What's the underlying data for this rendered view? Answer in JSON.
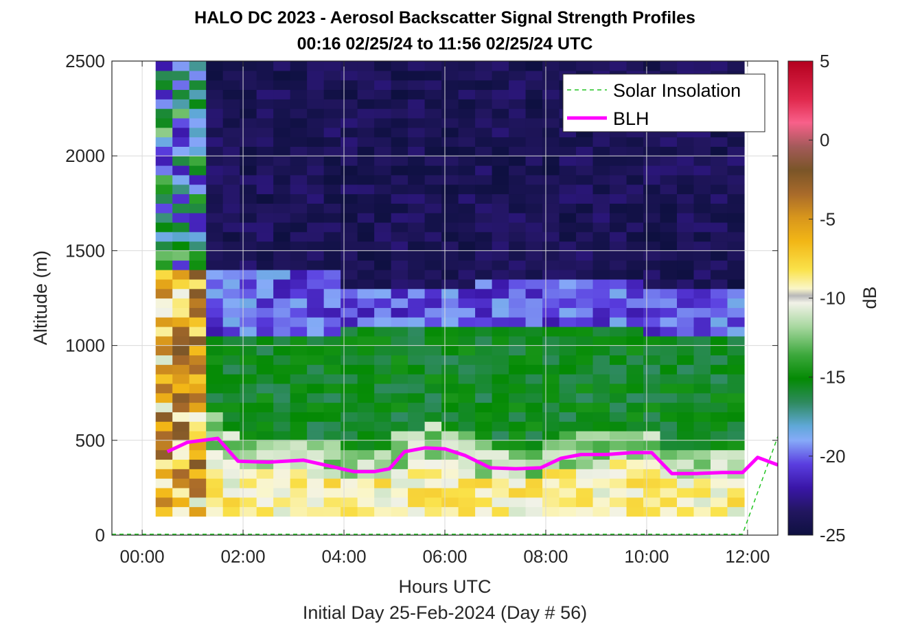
{
  "chart_data": {
    "type": "heatmap",
    "title": "HALO DC 2023 - Aerosol Backscatter Signal Strength Profiles",
    "subtitle": "00:16 02/25/24 to 11:56 02/25/24  UTC",
    "xlabel": "Hours UTC",
    "xlabel2": "Initial Day 25-Feb-2024 (Day # 56)",
    "ylabel": "Altitude (m)",
    "colorbar_label": "dB",
    "xlim": [
      -0.6,
      12.6
    ],
    "ylim": [
      0,
      2500
    ],
    "clim": [
      -25,
      5
    ],
    "x_ticks": [
      0,
      2,
      4,
      6,
      8,
      10,
      12
    ],
    "x_tick_labels": [
      "00:00",
      "02:00",
      "04:00",
      "06:00",
      "08:00",
      "10:00",
      "12:00"
    ],
    "y_ticks": [
      0,
      500,
      1000,
      1500,
      2000,
      2500
    ],
    "y_tick_labels": [
      "0",
      "500",
      "1000",
      "1500",
      "2000",
      "2500"
    ],
    "colorbar_ticks": [
      5,
      0,
      -5,
      -10,
      -15,
      -20,
      -25
    ],
    "colorbar_tick_labels": [
      "5",
      "0",
      "-5",
      "-10",
      "-15",
      "-20",
      "-25"
    ],
    "grid": true,
    "legend_position": "top-right",
    "legend": [
      {
        "label": "Solar Insolation",
        "color": "#22c422",
        "style": "dashed"
      },
      {
        "label": "BLH",
        "color": "#ff00ff",
        "style": "solid"
      }
    ],
    "heatmap": {
      "time_start_hours": 0.267,
      "time_end_hours": 11.933,
      "alt_start_m": 100,
      "alt_end_m": 2500,
      "alt_step_m": 50,
      "notes": "Approximate backscatter (dB): ~-9 near surface, ~-16 in mixed layer up to ~1000 m, ~-21 transition band, ~-24 aloft"
    },
    "blh": {
      "x": [
        0.5,
        0.9,
        1.5,
        1.9,
        2.5,
        3.2,
        3.7,
        4.2,
        4.6,
        4.9,
        5.2,
        5.6,
        6.0,
        6.4,
        6.9,
        7.4,
        7.9,
        8.3,
        8.7,
        9.2,
        9.7,
        10.1,
        10.5,
        11.0,
        11.5,
        11.9,
        12.2,
        12.6
      ],
      "y": [
        440,
        490,
        510,
        390,
        385,
        395,
        365,
        335,
        335,
        350,
        440,
        460,
        455,
        420,
        355,
        350,
        355,
        405,
        425,
        425,
        435,
        435,
        325,
        325,
        330,
        330,
        410,
        370
      ]
    },
    "solar_insolation": {
      "x": [
        -0.6,
        11.9,
        12.6
      ],
      "y": [
        5,
        5,
        520
      ]
    }
  }
}
